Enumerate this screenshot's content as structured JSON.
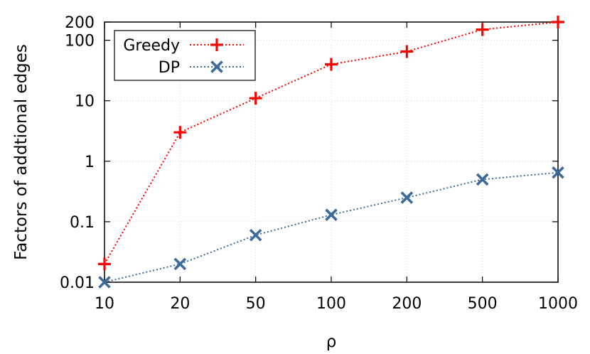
{
  "chart_data": {
    "type": "line",
    "title": "",
    "xlabel": "ρ",
    "ylabel": "Factors of addtional edges",
    "categories": [
      "10",
      "20",
      "50",
      "100",
      "200",
      "500",
      "1000"
    ],
    "y_scale": "log",
    "ylim": [
      0.01,
      200
    ],
    "y_ticks": [
      "0.01",
      "0.1",
      "1",
      "10",
      "100",
      "200"
    ],
    "y_tick_values": [
      0.01,
      0.1,
      1,
      10,
      100,
      200
    ],
    "grid": true,
    "legend": "top-left",
    "series": [
      {
        "name": "Greedy",
        "values": [
          0.02,
          3,
          11,
          40,
          65,
          150,
          200
        ],
        "color": "#ff0000",
        "marker": "plus",
        "line": "dotted"
      },
      {
        "name": "DP",
        "values": [
          0.01,
          0.02,
          0.06,
          0.13,
          0.25,
          0.5,
          0.65
        ],
        "color": "#3b6b9a",
        "marker": "cross",
        "line": "dotted"
      }
    ]
  }
}
